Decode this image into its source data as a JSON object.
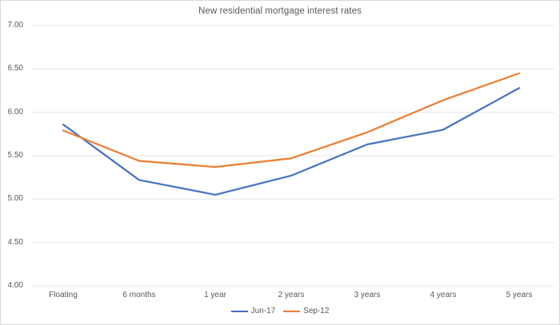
{
  "chart_data": {
    "type": "line",
    "title": "New residential mortgage interest rates",
    "categories": [
      "Floating",
      "6 months",
      "1 year",
      "2 years",
      "3 years",
      "4 years",
      "5 years"
    ],
    "series": [
      {
        "name": "Jun-17",
        "color": "#4472C4",
        "values": [
          5.86,
          5.22,
          5.05,
          5.27,
          5.63,
          5.8,
          6.28
        ]
      },
      {
        "name": "Sep-12",
        "color": "#ED7D31",
        "values": [
          5.79,
          5.44,
          5.37,
          5.47,
          5.77,
          6.14,
          6.45
        ]
      }
    ],
    "xlabel": "",
    "ylabel": "",
    "ylim": [
      4.0,
      7.0
    ],
    "yticks": [
      7.0,
      6.5,
      6.0,
      5.5,
      5.0,
      4.5,
      4.0
    ],
    "ytick_format": "0.00",
    "grid": "horizontal-only",
    "grid_color": "#e4e4e4",
    "axis_text_color": "#595959",
    "legend_position": "bottom-center"
  }
}
